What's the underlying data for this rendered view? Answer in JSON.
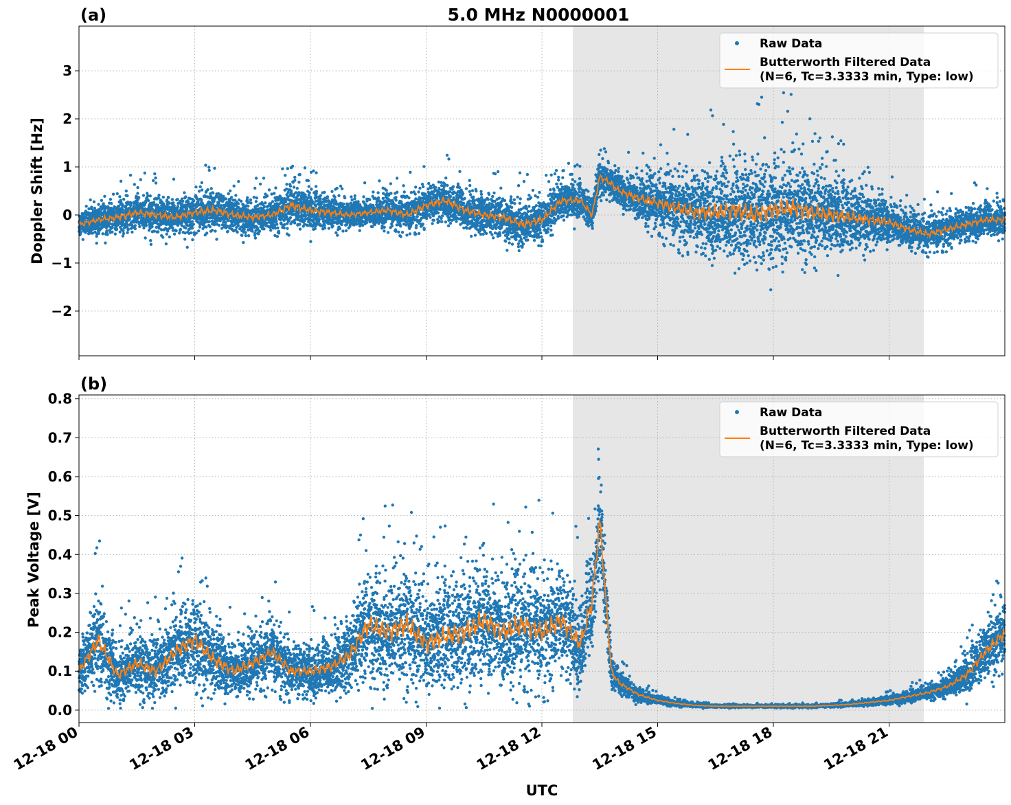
{
  "figure": {
    "title": "5.0 MHz N0000001",
    "xlabel": "UTC"
  },
  "colors": {
    "raw": "#1f77b4",
    "filtered": "#ff7f0e",
    "shade": "#e6e6e6"
  },
  "x_axis": {
    "range_hours": [
      0,
      24
    ],
    "ticks": [
      {
        "hour": 0,
        "label": "12-18 00"
      },
      {
        "hour": 3,
        "label": "12-18 03"
      },
      {
        "hour": 6,
        "label": "12-18 06"
      },
      {
        "hour": 9,
        "label": "12-18 09"
      },
      {
        "hour": 12,
        "label": "12-18 12"
      },
      {
        "hour": 15,
        "label": "12-18 15"
      },
      {
        "hour": 18,
        "label": "12-18 18"
      },
      {
        "hour": 21,
        "label": "12-18 21"
      }
    ],
    "shaded_span_hours": [
      12.8,
      21.9
    ]
  },
  "chart_data": [
    {
      "panel": "(a)",
      "type": "scatter+line",
      "title": "5.0 MHz N0000001",
      "xlabel": "",
      "ylabel": "Doppler Shift [Hz]",
      "ylim": [
        -2.93,
        3.93
      ],
      "yticks": [
        {
          "value": 3,
          "label": "3"
        },
        {
          "value": 2,
          "label": "2"
        },
        {
          "value": 1,
          "label": "1"
        },
        {
          "value": 0,
          "label": "0"
        },
        {
          "value": -1,
          "label": "−1"
        },
        {
          "value": -2,
          "label": "−2"
        }
      ],
      "legend": {
        "position": "top-right",
        "raw_label": "Raw Data",
        "filtered_label_1": "Butterworth Filtered Data",
        "filtered_label_2": "(N=6, Tc=3.3333 min, Type: low)"
      },
      "series": [
        {
          "name": "Butterworth Filtered Data",
          "x_hours": [
            0,
            0.5,
            1,
            1.5,
            2,
            2.5,
            3,
            3.5,
            4,
            4.5,
            5,
            5.5,
            6,
            6.5,
            7,
            7.5,
            8,
            8.5,
            9,
            9.5,
            10,
            10.5,
            11,
            11.5,
            12,
            12.5,
            13,
            13.3,
            13.5,
            13.8,
            14,
            14.5,
            15,
            15.5,
            16,
            16.5,
            17,
            17.5,
            18,
            18.5,
            19,
            19.5,
            20,
            20.5,
            21,
            21.5,
            22,
            22.5,
            23,
            23.5,
            24
          ],
          "values": [
            -0.2,
            -0.1,
            -0.05,
            0.05,
            0.0,
            -0.05,
            0.05,
            0.1,
            0.0,
            -0.05,
            0.0,
            0.2,
            0.1,
            0.05,
            0.0,
            0.05,
            0.1,
            0.0,
            0.2,
            0.3,
            0.1,
            0.0,
            -0.05,
            -0.2,
            -0.1,
            0.3,
            0.3,
            0.0,
            0.8,
            0.65,
            0.5,
            0.35,
            0.25,
            0.15,
            0.05,
            0.05,
            0.1,
            0.0,
            0.1,
            0.15,
            0.05,
            0.0,
            -0.05,
            -0.1,
            -0.15,
            -0.3,
            -0.4,
            -0.3,
            -0.2,
            -0.1,
            -0.1
          ]
        },
        {
          "name": "Raw Data",
          "spread_hz": [
            0.25,
            0.25,
            0.3,
            0.3,
            0.35,
            0.3,
            0.35,
            0.35,
            0.3,
            0.3,
            0.3,
            0.4,
            0.35,
            0.3,
            0.25,
            0.25,
            0.3,
            0.3,
            0.35,
            0.35,
            0.35,
            0.35,
            0.35,
            0.4,
            0.35,
            0.35,
            0.3,
            0.3,
            0.3,
            0.3,
            0.3,
            0.4,
            0.5,
            0.6,
            0.7,
            0.8,
            0.9,
            0.9,
            0.9,
            0.9,
            0.8,
            0.7,
            0.6,
            0.5,
            0.4,
            0.3,
            0.3,
            0.3,
            0.3,
            0.3,
            0.3
          ]
        }
      ]
    },
    {
      "panel": "(b)",
      "type": "scatter+line",
      "title": "",
      "xlabel": "UTC",
      "ylabel": "Peak Voltage [V]",
      "ylim": [
        -0.032,
        0.81
      ],
      "yticks": [
        {
          "value": 0.8,
          "label": "0.8"
        },
        {
          "value": 0.7,
          "label": "0.7"
        },
        {
          "value": 0.6,
          "label": "0.6"
        },
        {
          "value": 0.5,
          "label": "0.5"
        },
        {
          "value": 0.4,
          "label": "0.4"
        },
        {
          "value": 0.3,
          "label": "0.3"
        },
        {
          "value": 0.2,
          "label": "0.2"
        },
        {
          "value": 0.1,
          "label": "0.1"
        },
        {
          "value": 0.0,
          "label": "0.0"
        }
      ],
      "legend": {
        "position": "top-right",
        "raw_label": "Raw Data",
        "filtered_label_1": "Butterworth Filtered Data",
        "filtered_label_2": "(N=6, Tc=3.3333 min, Type: low)"
      },
      "series": [
        {
          "name": "Butterworth Filtered Data",
          "x_hours": [
            0,
            0.5,
            1,
            1.5,
            2,
            2.5,
            3,
            3.5,
            4,
            4.5,
            5,
            5.5,
            6,
            6.5,
            7,
            7.5,
            8,
            8.5,
            9,
            9.5,
            10,
            10.5,
            11,
            11.5,
            12,
            12.5,
            13,
            13.3,
            13.5,
            13.8,
            14,
            14.5,
            15,
            15.5,
            16,
            16.5,
            17,
            17.5,
            18,
            18.5,
            19,
            19.5,
            20,
            20.5,
            21,
            21.5,
            22,
            22.5,
            23,
            23.5,
            24
          ],
          "values": [
            0.1,
            0.18,
            0.09,
            0.12,
            0.1,
            0.15,
            0.18,
            0.13,
            0.1,
            0.12,
            0.15,
            0.1,
            0.1,
            0.11,
            0.14,
            0.22,
            0.2,
            0.22,
            0.17,
            0.19,
            0.2,
            0.23,
            0.2,
            0.22,
            0.2,
            0.23,
            0.17,
            0.28,
            0.49,
            0.1,
            0.07,
            0.04,
            0.025,
            0.017,
            0.012,
            0.01,
            0.01,
            0.01,
            0.01,
            0.01,
            0.01,
            0.012,
            0.015,
            0.02,
            0.025,
            0.035,
            0.045,
            0.06,
            0.09,
            0.15,
            0.2
          ]
        },
        {
          "name": "Raw Data",
          "spread_v": [
            0.05,
            0.1,
            0.06,
            0.07,
            0.07,
            0.08,
            0.1,
            0.08,
            0.06,
            0.06,
            0.07,
            0.06,
            0.06,
            0.06,
            0.08,
            0.12,
            0.12,
            0.13,
            0.11,
            0.12,
            0.13,
            0.13,
            0.12,
            0.13,
            0.12,
            0.12,
            0.1,
            0.12,
            0.12,
            0.04,
            0.025,
            0.015,
            0.008,
            0.006,
            0.004,
            0.003,
            0.003,
            0.003,
            0.003,
            0.003,
            0.003,
            0.004,
            0.005,
            0.007,
            0.009,
            0.012,
            0.015,
            0.02,
            0.04,
            0.06,
            0.08
          ]
        }
      ]
    }
  ]
}
